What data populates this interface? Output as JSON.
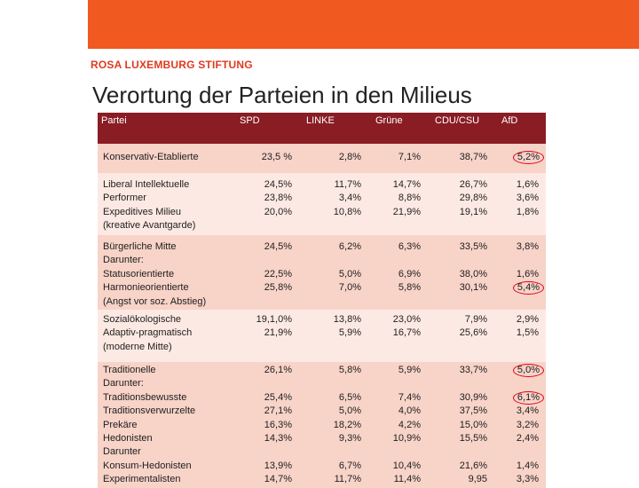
{
  "header": {
    "foundation": "ROSA LUXEMBURG STIFTUNG",
    "title": "Verortung der Parteien in den Milieus",
    "banner_color": "#f05a20"
  },
  "table": {
    "columns": [
      "Partei",
      "SPD",
      "LINKE",
      "Grüne",
      "CDU/CSU",
      "AfD"
    ],
    "rows": [
      {
        "label": [
          "Konservativ-Etablierte"
        ],
        "values": [
          [
            "23,5 %"
          ],
          [
            "2,8%"
          ],
          [
            "7,1%"
          ],
          [
            "38,7%"
          ],
          [
            "5,2%"
          ]
        ],
        "circled_afd": [
          0
        ]
      },
      {
        "label": [
          "Liberal Intellektuelle",
          "Performer",
          "Expeditives Milieu",
          "(kreative Avantgarde)"
        ],
        "values": [
          [
            "24,5%",
            "23,8%",
            "20,0%"
          ],
          [
            "11,7%",
            "3,4%",
            "10,8%"
          ],
          [
            "14,7%",
            "8,8%",
            "21,9%"
          ],
          [
            "26,7%",
            "29,8%",
            "19,1%"
          ],
          [
            "1,6%",
            "3,6%",
            "1,8%"
          ]
        ],
        "circled_afd": []
      },
      {
        "label": [
          "Bürgerliche Mitte",
          "Darunter:",
          "Statusorientierte",
          "Harmonieorientierte",
          "(Angst vor soz. Abstieg)"
        ],
        "values": [
          [
            "24,5%",
            "",
            "22,5%",
            "25,8%"
          ],
          [
            "6,2%",
            "",
            "5,0%",
            "7,0%"
          ],
          [
            "6,3%",
            "",
            "6,9%",
            "5,8%"
          ],
          [
            "33,5%",
            "",
            "38,0%",
            "30,1%"
          ],
          [
            "3,8%",
            "",
            "1,6%",
            "5,4%"
          ]
        ],
        "circled_afd": [
          3
        ]
      },
      {
        "label": [
          "Sozialökologische",
          "Adaptiv-pragmatisch",
          "(moderne Mitte)"
        ],
        "values": [
          [
            "19,1,0%",
            "21,9%"
          ],
          [
            "13,8%",
            "5,9%"
          ],
          [
            "23,0%",
            "16,7%"
          ],
          [
            "7,9%",
            "25,6%"
          ],
          [
            "2,9%",
            "1,5%"
          ]
        ],
        "circled_afd": []
      },
      {
        "label": [
          "Traditionelle",
          "Darunter:",
          "Traditionsbewusste",
          "Traditionsverwurzelte",
          "Prekäre",
          "Hedonisten",
          "Darunter",
          "Konsum-Hedonisten",
          "Experimentalisten"
        ],
        "values": [
          [
            "26,1%",
            "",
            "25,4%",
            "27,1%",
            "16,3%",
            "14,3%",
            "",
            "13,9%",
            "14,7%"
          ],
          [
            "5,8%",
            "",
            "6,5%",
            "5,0%",
            "18,2%",
            "9,3%",
            "",
            "6,7%",
            "11,7%"
          ],
          [
            "5,9%",
            "",
            "7,4%",
            "4,0%",
            "4,2%",
            "10,9%",
            "",
            "10,4%",
            "11,4%"
          ],
          [
            "33,7%",
            "",
            "30,9%",
            "37,5%",
            "15,0%",
            "15,5%",
            "",
            "21,6%",
            "9,95"
          ],
          [
            "5,0%",
            "",
            "6,1%",
            "3,4%",
            "3,2%",
            "2,4%",
            "",
            "1,4%",
            "3,3%"
          ]
        ],
        "circled_afd": [
          0,
          2
        ]
      }
    ]
  }
}
